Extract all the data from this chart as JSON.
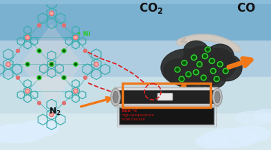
{
  "bg_top": "#8bbdd9",
  "bg_bottom": "#c5daea",
  "cloud_color": "#ddeeff",
  "teal": "#3aacac",
  "pink": "#e07070",
  "green_dot": "#22cc22",
  "dark_gray": "#2a2a2a",
  "orange": "#f07818",
  "dashed_red": "#dd2222",
  "white_arrow": "#d8d0c8",
  "furnace_silver": "#c8c8c8",
  "furnace_dark": "#181818",
  "furnace_red_text": "#cc1111",
  "co2_label": "CO",
  "co2_sub": "2",
  "co_label": "CO",
  "ni_label": "Ni",
  "n2_label": "N",
  "n2_sub": "2",
  "furnace_line1": "800 °C",
  "furnace_line2": "High-temperature",
  "furnace_line3": "tube furnace"
}
